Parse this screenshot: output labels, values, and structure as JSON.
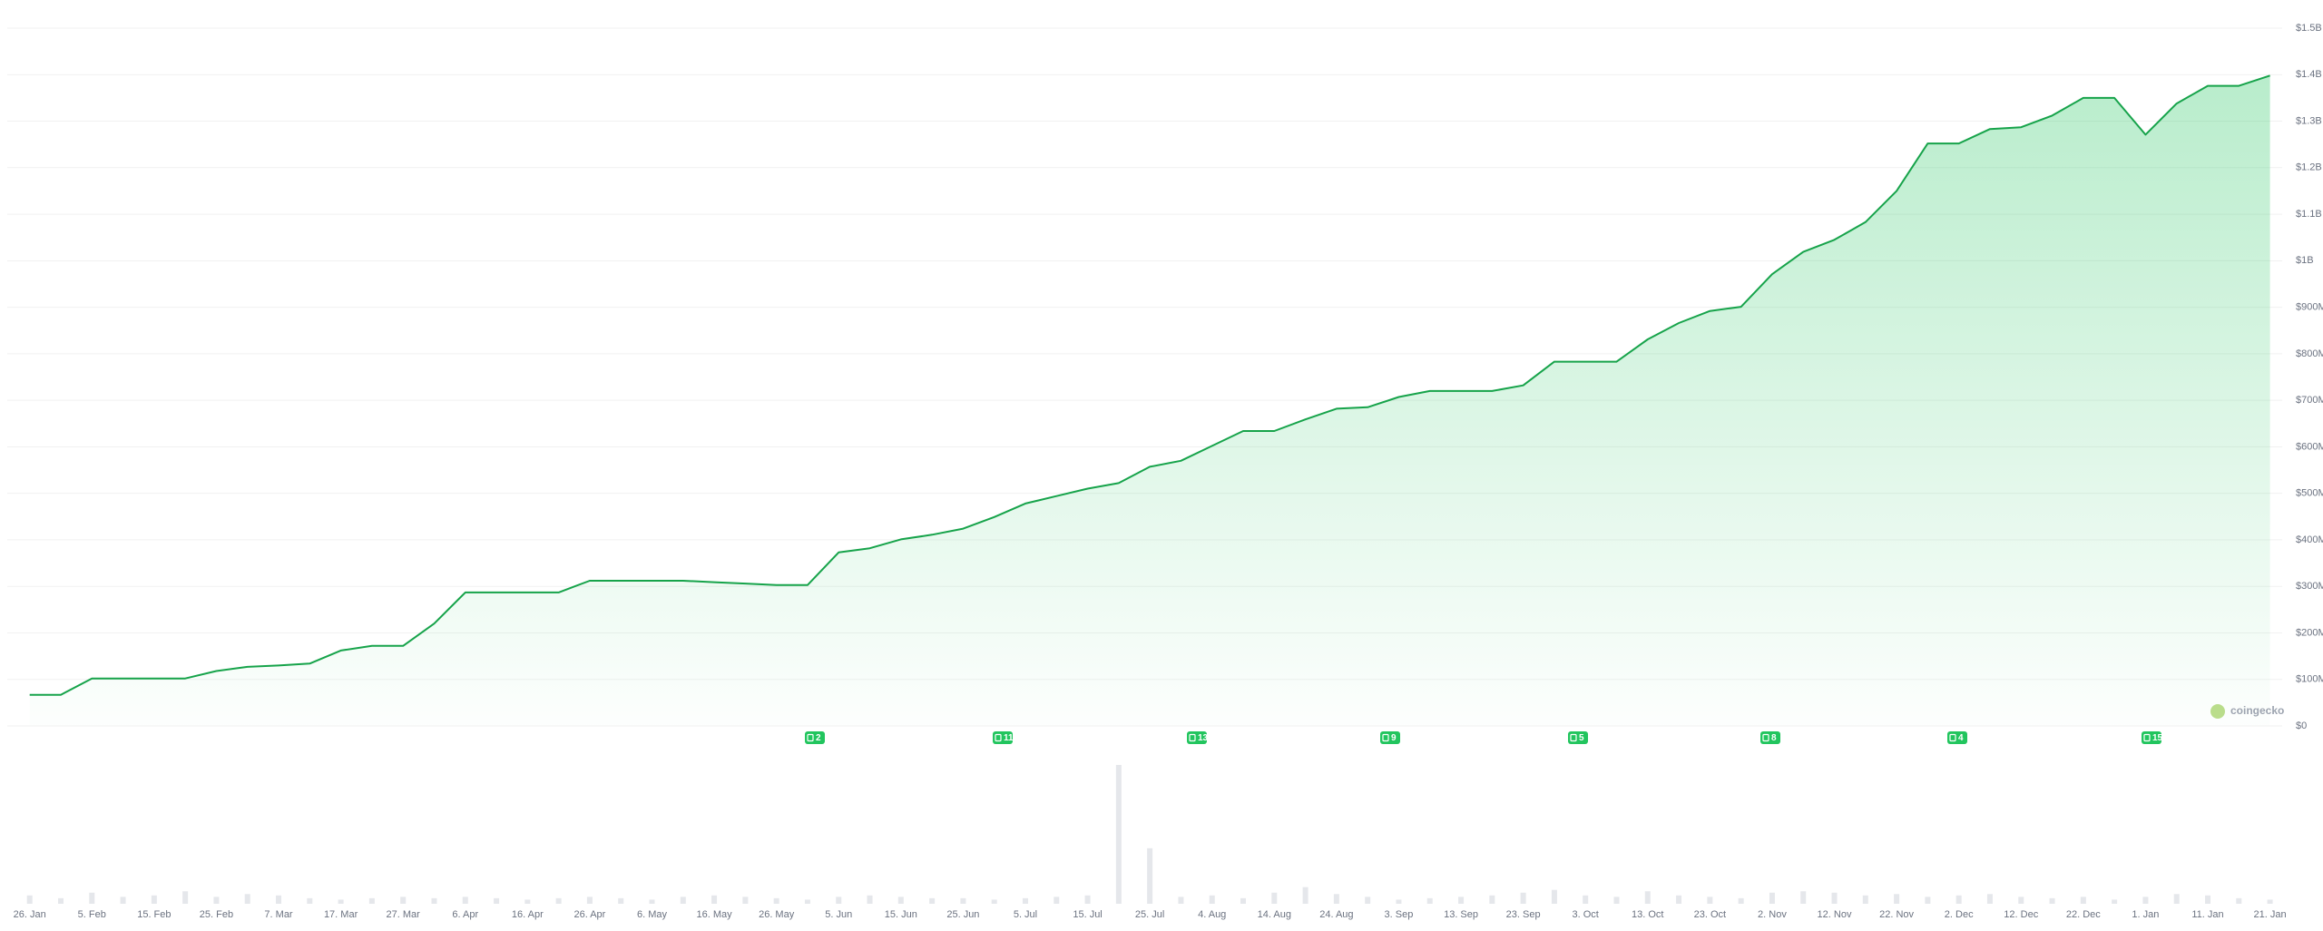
{
  "chart_data": [
    {
      "type": "line",
      "categories": [
        "26. Jan",
        null,
        "5. Feb",
        null,
        "15. Feb",
        null,
        "25. Feb",
        null,
        "7. Mar",
        null,
        "17. Mar",
        null,
        "27. Mar",
        null,
        "6. Apr",
        null,
        "16. Apr",
        null,
        "26. Apr",
        null,
        "6. May",
        null,
        "16. May",
        null,
        "26. May",
        null,
        "5. Jun",
        null,
        "15. Jun",
        null,
        "25. Jun",
        null,
        "5. Jul",
        null,
        "15. Jul",
        null,
        "25. Jul",
        null,
        "4. Aug",
        null,
        "14. Aug",
        null,
        "24. Aug",
        null,
        "3. Sep",
        null,
        "13. Sep",
        null,
        "23. Sep",
        null,
        "3. Oct",
        null,
        "13. Oct",
        null,
        "23. Oct",
        null,
        "2. Nov",
        null,
        "12. Nov",
        null,
        "22. Nov",
        null,
        "2. Dec",
        null,
        "12. Dec",
        null,
        "22. Dec",
        null,
        "1. Jan",
        null,
        "11. Jan",
        null,
        "21. Jan"
      ],
      "series": [
        {
          "color": "#16a34a",
          "values": [
            67,
            67,
            102,
            102,
            102,
            102,
            118,
            127,
            130,
            134,
            162,
            172,
            172,
            220,
            287,
            287,
            287,
            287,
            312,
            312,
            312,
            312,
            309,
            306,
            303,
            303,
            373,
            382,
            401,
            411,
            424,
            449,
            478,
            494,
            510,
            522,
            557,
            570,
            602,
            634,
            634,
            659,
            682,
            685,
            707,
            720,
            720,
            720,
            732,
            783,
            783,
            783,
            831,
            866,
            892,
            901,
            971,
            1019,
            1045,
            1083,
            1150,
            1252,
            1252,
            1283,
            1287,
            1312,
            1350,
            1350,
            1271,
            1338,
            1376,
            1376,
            1398
          ]
        }
      ],
      "ylim": [
        0,
        1500
      ],
      "yticks": [
        {
          "value": 0,
          "label": "$0"
        },
        {
          "value": 100,
          "label": "$100M"
        },
        {
          "value": 200,
          "label": "$200M"
        },
        {
          "value": 300,
          "label": "$300M"
        },
        {
          "value": 400,
          "label": "$400M"
        },
        {
          "value": 500,
          "label": "$500M"
        },
        {
          "value": 600,
          "label": "$600M"
        },
        {
          "value": 700,
          "label": "$700M"
        },
        {
          "value": 800,
          "label": "$800M"
        },
        {
          "value": 900,
          "label": "$900M"
        },
        {
          "value": 1000,
          "label": "$1B"
        },
        {
          "value": 1100,
          "label": "$1.1B"
        },
        {
          "value": 1200,
          "label": "$1.2B"
        },
        {
          "value": 1300,
          "label": "$1.3B"
        },
        {
          "value": 1400,
          "label": "$1.4B"
        },
        {
          "value": 1500,
          "label": "$1.5B"
        }
      ],
      "grid": true,
      "events": [
        "2",
        "11",
        "13",
        "9",
        "5",
        "8",
        "4",
        "15"
      ],
      "watermark": "coingecko"
    },
    {
      "type": "bar",
      "color": "#e5e7eb",
      "ylim": [
        0,
        100
      ],
      "values": [
        6,
        4,
        8,
        5,
        6,
        9,
        5,
        7,
        6,
        4,
        3,
        4,
        5,
        4,
        5,
        4,
        3,
        4,
        5,
        4,
        3,
        5,
        6,
        5,
        4,
        3,
        5,
        6,
        5,
        4,
        4,
        3,
        4,
        5,
        6,
        100,
        40,
        5,
        6,
        4,
        8,
        12,
        7,
        5,
        3,
        4,
        5,
        6,
        8,
        10,
        6,
        5,
        9,
        6,
        5,
        4,
        8,
        9,
        8,
        6,
        7,
        5,
        6,
        7,
        5,
        4,
        5,
        3,
        5,
        7,
        6,
        4,
        3
      ]
    }
  ]
}
